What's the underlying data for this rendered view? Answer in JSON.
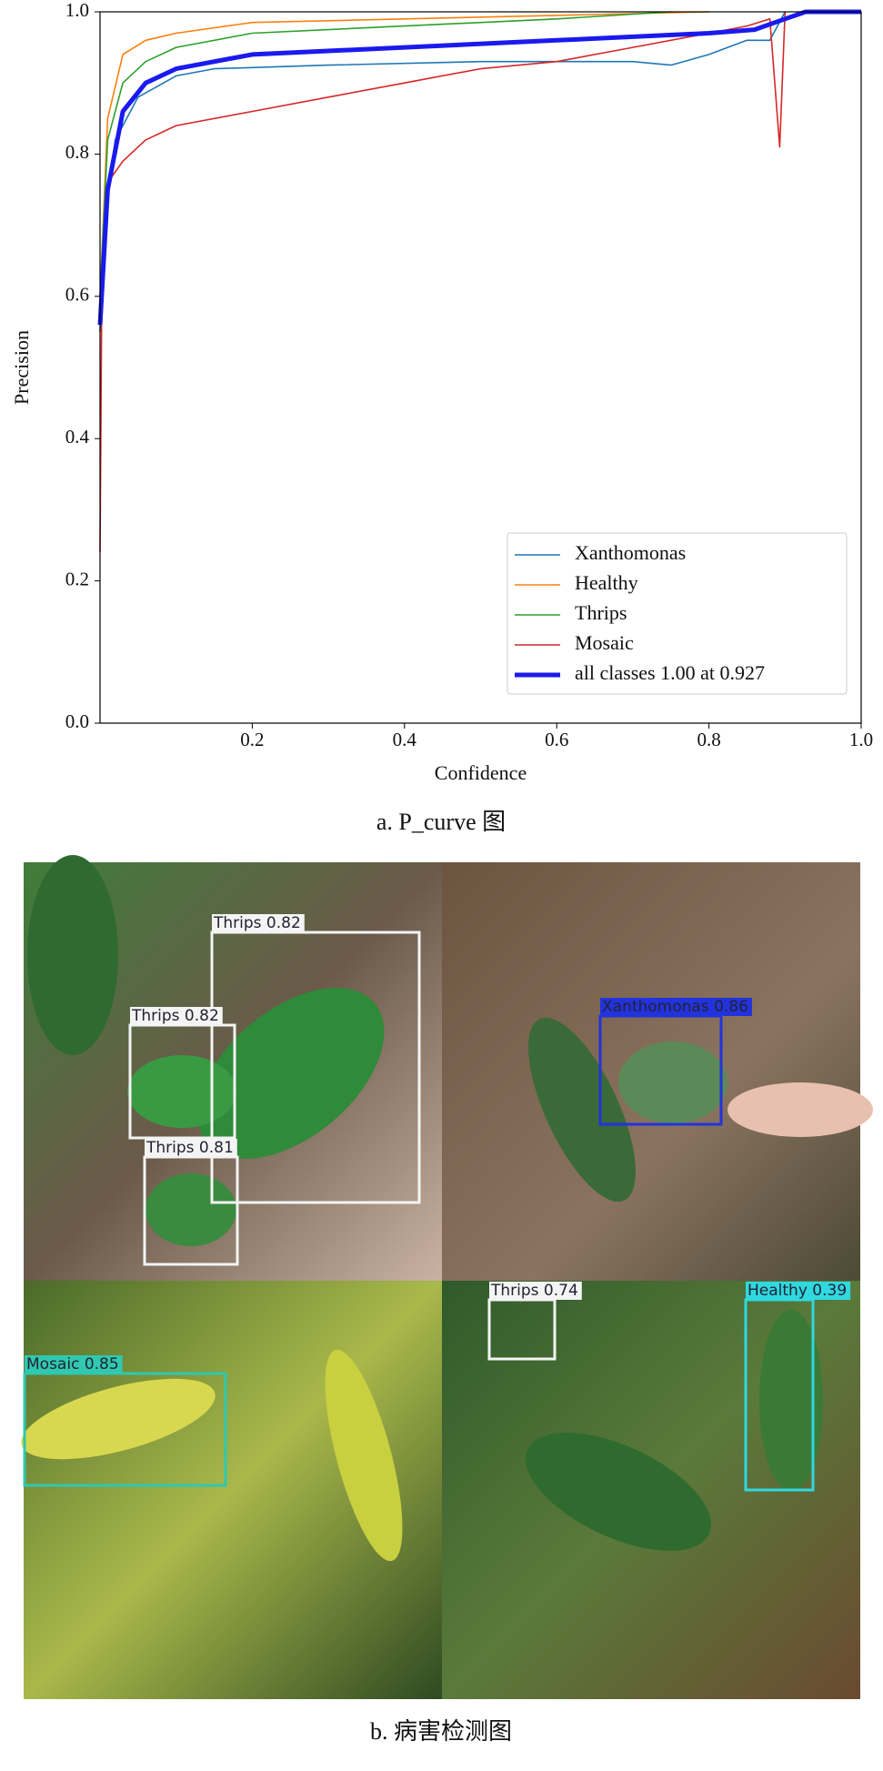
{
  "chart_data": {
    "type": "line",
    "x_label": "Confidence",
    "y_label": "Precision",
    "xlim": [
      0,
      1
    ],
    "ylim": [
      0,
      1
    ],
    "xticks": [
      0.2,
      0.4,
      0.6,
      0.8,
      {
        "value": 1,
        "label": "1.0"
      }
    ],
    "yticks": [
      {
        "value": 0,
        "label": "0.0"
      },
      0.2,
      0.4,
      0.6,
      0.8,
      {
        "value": 1,
        "label": "1.0"
      }
    ],
    "legend": "lower right",
    "series": [
      {
        "name": "Xanthomonas",
        "color": "#1f77b4",
        "x": [
          0,
          0.005,
          0.02,
          0.05,
          0.1,
          0.15,
          0.3,
          0.5,
          0.7,
          0.75,
          0.8,
          0.85,
          0.88,
          0.9
        ],
        "values": [
          0.55,
          0.7,
          0.82,
          0.88,
          0.91,
          0.92,
          0.925,
          0.93,
          0.93,
          0.925,
          0.94,
          0.96,
          0.96,
          1.0
        ]
      },
      {
        "name": "Healthy",
        "color": "#ff7f0e",
        "x": [
          0,
          0.01,
          0.03,
          0.06,
          0.1,
          0.2,
          0.4,
          0.6,
          0.8
        ],
        "values": [
          0.6,
          0.85,
          0.94,
          0.96,
          0.97,
          0.985,
          0.99,
          0.995,
          1.0
        ]
      },
      {
        "name": "Thrips",
        "color": "#2ca02c",
        "x": [
          0,
          0.01,
          0.03,
          0.06,
          0.1,
          0.2,
          0.4,
          0.6,
          0.75
        ],
        "values": [
          0.6,
          0.82,
          0.9,
          0.93,
          0.95,
          0.97,
          0.98,
          0.99,
          1.0
        ]
      },
      {
        "name": "Mosaic",
        "color": "#d62728",
        "x": [
          0,
          0.002,
          0.01,
          0.03,
          0.06,
          0.1,
          0.2,
          0.3,
          0.4,
          0.5,
          0.6,
          0.7,
          0.8,
          0.85,
          0.88,
          0.893,
          0.9
        ],
        "values": [
          0.24,
          0.56,
          0.76,
          0.79,
          0.82,
          0.84,
          0.86,
          0.88,
          0.9,
          0.92,
          0.93,
          0.95,
          0.97,
          0.98,
          0.99,
          0.81,
          1.0
        ]
      },
      {
        "name": "all classes 1.00 at 0.927",
        "color": "#1a1aee",
        "x": [
          0,
          0.01,
          0.03,
          0.06,
          0.1,
          0.2,
          0.4,
          0.6,
          0.8,
          0.86,
          0.9,
          0.927,
          1.0
        ],
        "values": [
          0.56,
          0.75,
          0.86,
          0.9,
          0.92,
          0.94,
          0.95,
          0.96,
          0.97,
          0.975,
          0.99,
          1.0,
          1.0
        ]
      }
    ]
  },
  "captions": [
    "a. P_curve 图",
    "b. 病害检测图"
  ],
  "detections": [
    "Thrips 0.82",
    "Thrips 0.82",
    "Thrips 0.81",
    "Xanthomonas 0.86",
    "Mosaic 0.85",
    "Thrips 0.74",
    "Healthy 0.39"
  ]
}
